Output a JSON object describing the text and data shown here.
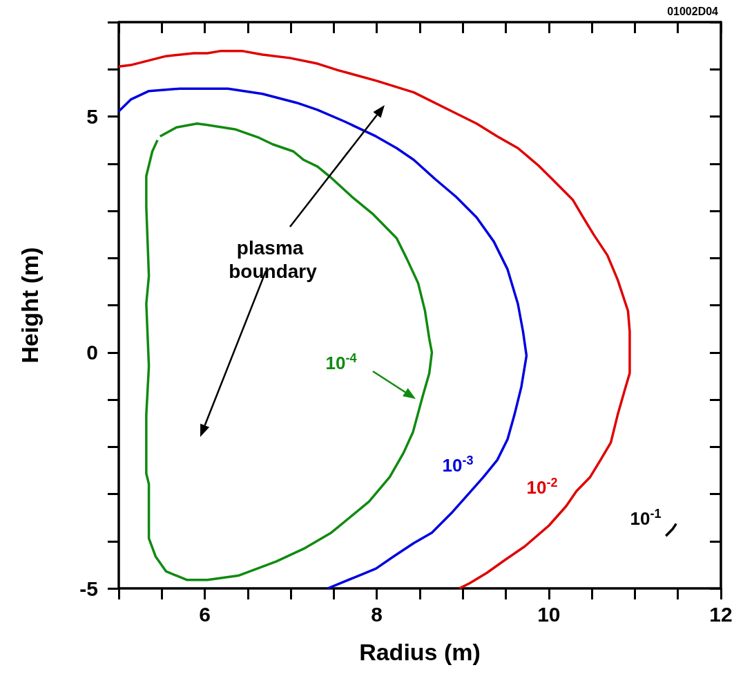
{
  "chart_data": {
    "type": "line",
    "xlabel": "Radius (m)",
    "ylabel": "Height (m)",
    "annotations": [
      "plasma boundary",
      "01002D04"
    ],
    "xlim": [
      5,
      12
    ],
    "ylim": [
      -5,
      7
    ],
    "xticks": [
      {
        "value": 5,
        "label": null
      },
      {
        "value": 5.5,
        "label": null
      },
      6,
      {
        "value": 6.5,
        "label": null
      },
      {
        "value": 7,
        "label": null
      },
      {
        "value": 7.5,
        "label": null
      },
      8,
      {
        "value": 8.5,
        "label": null
      },
      {
        "value": 9,
        "label": null
      },
      {
        "value": 9.5,
        "label": null
      },
      10,
      {
        "value": 10.5,
        "label": null
      },
      {
        "value": 11,
        "label": null
      },
      {
        "value": 11.5,
        "label": null
      },
      12
    ],
    "yticks": [
      -5,
      {
        "value": -4,
        "label": null
      },
      {
        "value": -3,
        "label": null
      },
      {
        "value": -2,
        "label": null
      },
      {
        "value": -1,
        "label": null
      },
      0,
      {
        "value": 1,
        "label": null
      },
      {
        "value": 2,
        "label": null
      },
      {
        "value": 3,
        "label": null
      },
      {
        "value": 4,
        "label": null
      },
      5,
      {
        "value": 6,
        "label": null
      },
      {
        "value": 7,
        "label": null
      }
    ],
    "grid": false,
    "legend": false,
    "series": [
      {
        "name": "10$^{-4}$",
        "color": "#108a10",
        "x": [
          5.48,
          5.67,
          5.91,
          6.03,
          6.35,
          6.63,
          6.79,
          7.03,
          7.15,
          7.31,
          7.47,
          7.71,
          7.95,
          8.23,
          8.35,
          8.48,
          8.56,
          8.61,
          8.64,
          8.61,
          8.53,
          8.42,
          8.31,
          8.15,
          7.91,
          7.67,
          7.47,
          7.15,
          6.83,
          6.39,
          6.03,
          5.79,
          5.55,
          5.43,
          5.35,
          5.35,
          5.32,
          5.32,
          5.35,
          5.32,
          5.35,
          5.32,
          5.32,
          5.39,
          5.45
        ],
        "values": [
          4.58,
          4.77,
          4.85,
          4.82,
          4.73,
          4.55,
          4.41,
          4.26,
          4.08,
          3.94,
          3.7,
          3.3,
          2.94,
          2.42,
          1.98,
          1.47,
          0.88,
          0.29,
          0,
          -0.44,
          -0.95,
          -1.69,
          -2.13,
          -2.64,
          -3.16,
          -3.52,
          -3.82,
          -4.16,
          -4.43,
          -4.73,
          -4.82,
          -4.82,
          -4.64,
          -4.33,
          -3.94,
          -2.79,
          -2.57,
          -1.32,
          -0.29,
          1.03,
          1.62,
          3.08,
          3.74,
          4.26,
          4.5
        ]
      },
      {
        "name": "10$^{-3}$",
        "color": "#0000e0",
        "x": [
          5,
          5.14,
          5.35,
          5.71,
          6.27,
          6.67,
          7.07,
          7.31,
          7.63,
          7.99,
          8.23,
          8.43,
          8.68,
          8.92,
          9.16,
          9.36,
          9.52,
          9.64,
          9.7,
          9.74,
          9.68,
          9.6,
          9.52,
          9.4,
          9.24,
          9.08,
          8.88,
          8.64,
          8.43,
          8.19,
          7.99,
          7.83,
          7.43
        ],
        "values": [
          5.11,
          5.36,
          5.54,
          5.59,
          5.59,
          5.48,
          5.29,
          5.14,
          4.89,
          4.58,
          4.33,
          4.08,
          3.67,
          3.3,
          2.86,
          2.35,
          1.76,
          1.03,
          0.44,
          -0.07,
          -0.73,
          -1.32,
          -1.84,
          -2.28,
          -2.64,
          -2.97,
          -3.38,
          -3.82,
          -4.04,
          -4.33,
          -4.58,
          -4.7,
          -5
        ]
      },
      {
        "name": "10$^{-2}$",
        "color": "#e00000",
        "x": [
          5,
          5.14,
          5.55,
          5.87,
          6.03,
          6.19,
          6.43,
          6.67,
          6.99,
          7.31,
          7.55,
          7.99,
          8.43,
          8.84,
          9.16,
          9.4,
          9.64,
          9.88,
          10.04,
          10.28,
          10.4,
          10.52,
          10.68,
          10.8,
          10.92,
          10.94,
          10.94,
          10.94,
          10.88,
          10.8,
          10.72,
          10.6,
          10.48,
          10.32,
          10.2,
          10,
          9.72,
          9.48,
          9.28,
          9.08,
          8.96
        ],
        "values": [
          6.06,
          6.09,
          6.28,
          6.34,
          6.34,
          6.39,
          6.39,
          6.31,
          6.24,
          6.12,
          5.98,
          5.76,
          5.51,
          5.14,
          4.85,
          4.58,
          4.33,
          3.96,
          3.67,
          3.23,
          2.86,
          2.5,
          2.06,
          1.54,
          0.88,
          0.44,
          0,
          -0.44,
          -0.81,
          -1.32,
          -1.91,
          -2.28,
          -2.64,
          -2.94,
          -3.26,
          -3.67,
          -4.11,
          -4.41,
          -4.67,
          -4.89,
          -5
        ]
      },
      {
        "name": "10$^{-1}$",
        "color": "#000000",
        "x": [
          11.36,
          11.44,
          11.48
        ],
        "values": [
          -3.89,
          -3.74,
          -3.63
        ]
      }
    ]
  }
}
